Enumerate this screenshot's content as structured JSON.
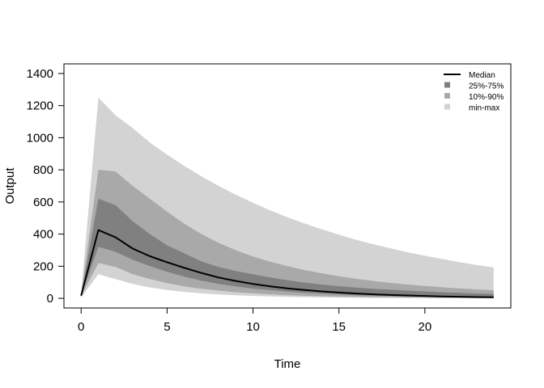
{
  "chart_data": {
    "type": "area",
    "xlabel": "Time",
    "ylabel": "Output",
    "xlim": [
      -1,
      25
    ],
    "ylim": [
      -60,
      1460
    ],
    "xticks": [
      0,
      5,
      10,
      15,
      20
    ],
    "yticks": [
      0,
      200,
      400,
      600,
      800,
      1000,
      1200,
      1400
    ],
    "legend_position": "top-right",
    "x": [
      0,
      1,
      2,
      3,
      4,
      5,
      6,
      7,
      8,
      9,
      10,
      11,
      12,
      13,
      14,
      15,
      16,
      17,
      18,
      19,
      20,
      21,
      22,
      23,
      24
    ],
    "bands": [
      {
        "name": "min-max",
        "color": "#d3d3d3",
        "lower": [
          5,
          150,
          120,
          90,
          68,
          52,
          40,
          31,
          24,
          19,
          15,
          12,
          9,
          7,
          6,
          5,
          4,
          3,
          3,
          2,
          2,
          2,
          1,
          1,
          1
        ],
        "upper": [
          30,
          1250,
          1140,
          1060,
          970,
          895,
          825,
          760,
          700,
          645,
          595,
          548,
          505,
          466,
          430,
          396,
          365,
          337,
          311,
          287,
          265,
          245,
          226,
          208,
          192
        ]
      },
      {
        "name": "10%-90%",
        "color": "#a9a9a9",
        "lower": [
          12,
          220,
          195,
          150,
          120,
          95,
          75,
          60,
          48,
          38,
          31,
          25,
          20,
          16,
          13,
          11,
          9,
          7,
          6,
          5,
          4,
          3,
          3,
          2,
          2
        ],
        "upper": [
          24,
          800,
          790,
          700,
          620,
          540,
          465,
          400,
          345,
          300,
          260,
          228,
          200,
          176,
          156,
          138,
          122,
          108,
          96,
          86,
          77,
          69,
          62,
          56,
          50
        ]
      },
      {
        "name": "25%-75%",
        "color": "#808080",
        "lower": [
          15,
          320,
          290,
          240,
          200,
          165,
          135,
          110,
          90,
          74,
          61,
          51,
          42,
          35,
          29,
          24,
          20,
          17,
          14,
          12,
          10,
          8,
          7,
          6,
          5
        ],
        "upper": [
          20,
          620,
          580,
          480,
          400,
          330,
          280,
          230,
          195,
          170,
          150,
          130,
          113,
          98,
          86,
          76,
          67,
          60,
          54,
          48,
          43,
          38,
          34,
          30,
          27
        ]
      }
    ],
    "series": [
      {
        "name": "Median",
        "color": "#000000",
        "values": [
          17,
          425,
          380,
          310,
          262,
          225,
          190,
          158,
          130,
          108,
          90,
          75,
          62,
          52,
          43,
          36,
          30,
          25,
          21,
          18,
          15,
          12,
          10,
          8,
          7
        ]
      }
    ],
    "legend": [
      {
        "label": "Median",
        "kind": "line",
        "color": "#000000"
      },
      {
        "label": "25%-75%",
        "kind": "box",
        "color": "#808080"
      },
      {
        "label": "10%-90%",
        "kind": "box",
        "color": "#a9a9a9"
      },
      {
        "label": "min-max",
        "kind": "box",
        "color": "#d3d3d3"
      }
    ]
  }
}
